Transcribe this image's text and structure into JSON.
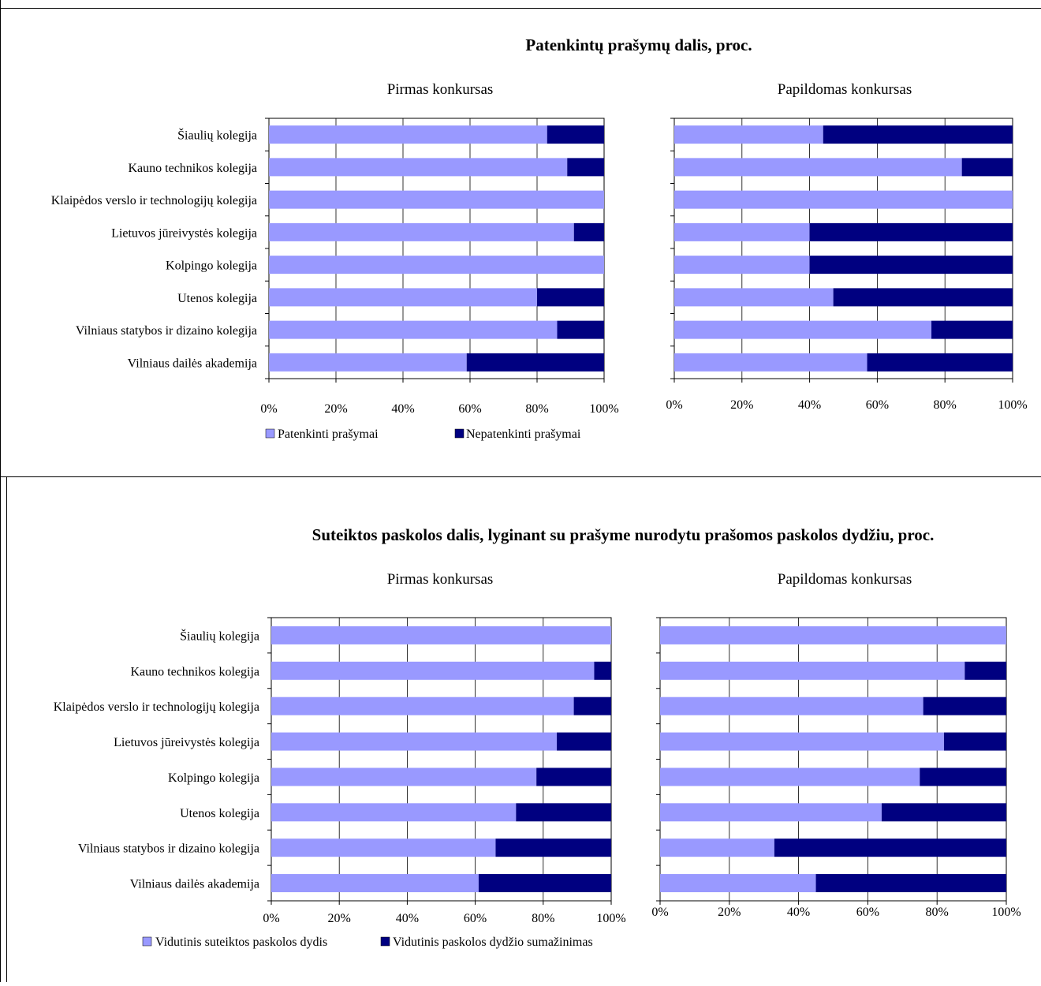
{
  "panels": [
    {
      "title": "Patenkintų prašymų dalis, proc.",
      "legend": [
        "Patenkinti prašymai",
        "Nepatenkinti prašymai"
      ],
      "charts": [
        {
          "subtitle": "Pirmas konkursas",
          "chart_data": {
            "type": "bar",
            "orientation": "horizontal",
            "stacked": "percent",
            "categories": [
              "Šiaulių kolegija",
              "Kauno technikos kolegija",
              "Klaipėdos verslo ir technologijų kolegija",
              "Lietuvos jūreivystės kolegija",
              "Kolpingo kolegija",
              "Utenos kolegija",
              "Vilniaus statybos ir dizaino kolegija",
              "Vilniaus dailės akademija"
            ],
            "series": [
              {
                "name": "Patenkinti prašymai",
                "values": [
                  83,
                  89,
                  100,
                  91,
                  100,
                  80,
                  86,
                  59
                ]
              },
              {
                "name": "Nepatenkinti prašymai",
                "values": [
                  17,
                  11,
                  0,
                  9,
                  0,
                  20,
                  14,
                  41
                ]
              }
            ],
            "xticks": [
              "0%",
              "20%",
              "40%",
              "60%",
              "80%",
              "100%"
            ],
            "xlim": [
              0,
              100
            ],
            "grid": true
          }
        },
        {
          "subtitle": "Papildomas konkursas",
          "chart_data": {
            "type": "bar",
            "orientation": "horizontal",
            "stacked": "percent",
            "categories": [
              "Šiaulių kolegija",
              "Kauno technikos kolegija",
              "Klaipėdos verslo ir technologijų kolegija",
              "Lietuvos jūreivystės kolegija",
              "Kolpingo kolegija",
              "Utenos kolegija",
              "Vilniaus statybos ir dizaino kolegija",
              "Vilniaus dailės akademija"
            ],
            "series": [
              {
                "name": "Patenkinti prašymai",
                "values": [
                  44,
                  85,
                  100,
                  40,
                  40,
                  47,
                  76,
                  57
                ]
              },
              {
                "name": "Nepatenkinti prašymai",
                "values": [
                  56,
                  15,
                  0,
                  60,
                  60,
                  53,
                  24,
                  43
                ]
              }
            ],
            "xticks": [
              "0%",
              "20%",
              "40%",
              "60%",
              "80%",
              "100%"
            ],
            "xlim": [
              0,
              100
            ],
            "grid": true
          }
        }
      ]
    },
    {
      "title": "Suteiktos paskolos dalis, lyginant su prašyme nurodytu prašomos paskolos dydžiu, proc.",
      "legend": [
        "Vidutinis suteiktos paskolos dydis",
        "Vidutinis paskolos dydžio sumažinimas"
      ],
      "charts": [
        {
          "subtitle": "Pirmas konkursas",
          "chart_data": {
            "type": "bar",
            "orientation": "horizontal",
            "stacked": "percent",
            "categories": [
              "Šiaulių kolegija",
              "Kauno technikos kolegija",
              "Klaipėdos verslo ir technologijų kolegija",
              "Lietuvos jūreivystės kolegija",
              "Kolpingo kolegija",
              "Utenos kolegija",
              "Vilniaus statybos ir dizaino kolegija",
              "Vilniaus dailės akademija"
            ],
            "series": [
              {
                "name": "Vidutinis suteiktos paskolos dydis",
                "values": [
                  100,
                  95,
                  89,
                  84,
                  78,
                  72,
                  66,
                  61
                ]
              },
              {
                "name": "Vidutinis paskolos dydžio sumažinimas",
                "values": [
                  0,
                  5,
                  11,
                  16,
                  22,
                  28,
                  34,
                  39
                ]
              }
            ],
            "xticks": [
              "0%",
              "20%",
              "40%",
              "60%",
              "80%",
              "100%"
            ],
            "xlim": [
              0,
              100
            ],
            "grid": true
          }
        },
        {
          "subtitle": "Papildomas konkursas",
          "chart_data": {
            "type": "bar",
            "orientation": "horizontal",
            "stacked": "percent",
            "categories": [
              "",
              "",
              "",
              "",
              "",
              "",
              "",
              ""
            ],
            "series": [
              {
                "name": "Vidutinis suteiktos paskolos dydis",
                "values": [
                  100,
                  88,
                  76,
                  82,
                  75,
                  64,
                  33,
                  45
                ]
              },
              {
                "name": "Vidutinis paskolos dydžio sumažinimas",
                "values": [
                  0,
                  12,
                  24,
                  18,
                  25,
                  36,
                  67,
                  55
                ]
              }
            ],
            "xticks": [
              "0%",
              "20%",
              "40%",
              "60%",
              "80%",
              "100%"
            ],
            "xlim": [
              0,
              100
            ],
            "grid": true
          }
        }
      ]
    }
  ],
  "colors": {
    "series1": "#9999ff",
    "series2": "#000080",
    "grid": "#000000",
    "frame": "#000000"
  }
}
